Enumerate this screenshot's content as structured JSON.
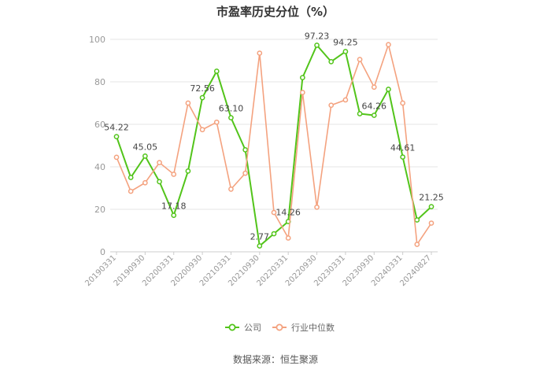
{
  "title": "市盈率历史分位（%）",
  "source_note": "数据来源：恒生聚源",
  "chart_data": {
    "type": "line",
    "title": "市盈率历史分位（%）",
    "xlabel": "",
    "ylabel": "",
    "ylim": [
      0,
      100
    ],
    "yticks": [
      0,
      20,
      40,
      60,
      80,
      100
    ],
    "grid": true,
    "legend_position": "bottom",
    "x_tick_labels": [
      "20190331",
      "20190930",
      "20200331",
      "20200930",
      "20210331",
      "20210930",
      "20220331",
      "20220930",
      "20230331",
      "20230930",
      "20240331",
      "20240827"
    ],
    "series": [
      {
        "name": "公司",
        "color": "#52c41a",
        "values": [
          54.22,
          35,
          45.05,
          33,
          17.18,
          38,
          72.56,
          85,
          63.1,
          48,
          2.77,
          8.5,
          14.26,
          82,
          97.23,
          89.5,
          94.25,
          65,
          64.26,
          76.5,
          44.61,
          15,
          21.25
        ],
        "labels": [
          "54.22",
          "",
          "45.05",
          "",
          "17.18",
          "",
          "72.56",
          "",
          "63.10",
          "",
          "2.77",
          "",
          "14.26",
          "",
          "97.23",
          "",
          "94.25",
          "",
          "64.26",
          "",
          "44.61",
          "",
          "21.25"
        ]
      },
      {
        "name": "行业中位数",
        "color": "#f4a27f",
        "values": [
          44.5,
          28.5,
          32.5,
          42,
          36.5,
          70,
          57.5,
          61,
          29.5,
          37,
          93.5,
          18.5,
          6.5,
          75,
          21,
          69,
          71.5,
          90.5,
          77.5,
          97.5,
          70,
          3.5,
          13.5
        ]
      }
    ]
  }
}
